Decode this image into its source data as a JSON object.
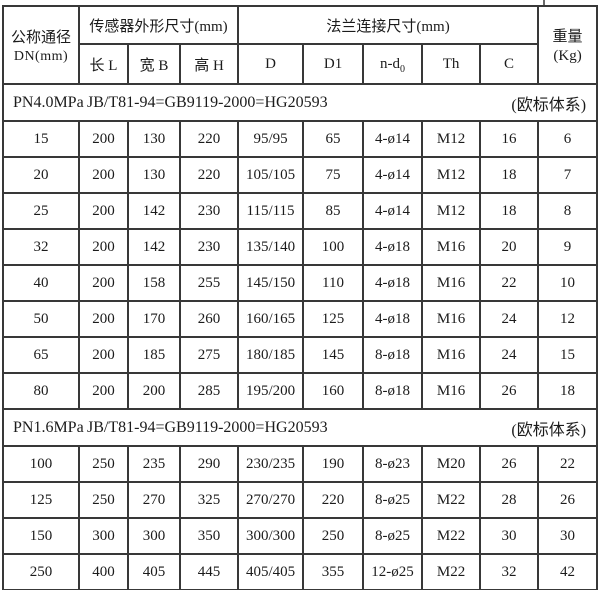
{
  "table": {
    "header": {
      "dn_line1": "公称通径",
      "dn_line2": "DN(mm)",
      "sensor_group": "传感器外形尺寸(mm)",
      "flange_group": "法兰连接尺寸(mm)",
      "weight_line1": "重量",
      "weight_line2": "(Kg)",
      "sub_cols": [
        "长 L",
        "宽 B",
        "高 H",
        "D",
        "D1",
        "n-d",
        "Th",
        "C"
      ],
      "nd_subscript": "0"
    },
    "border_color": "#383838",
    "sections": [
      {
        "pressure": "PN4.0MPa",
        "standard": "JB/T81-94=GB9119-2000=HG20593",
        "note": "(欧标体系)",
        "rows": [
          [
            "15",
            "200",
            "130",
            "220",
            "95/95",
            "65",
            "4-ø14",
            "M12",
            "16",
            "6"
          ],
          [
            "20",
            "200",
            "130",
            "220",
            "105/105",
            "75",
            "4-ø14",
            "M12",
            "18",
            "7"
          ],
          [
            "25",
            "200",
            "142",
            "230",
            "115/115",
            "85",
            "4-ø14",
            "M12",
            "18",
            "8"
          ],
          [
            "32",
            "200",
            "142",
            "230",
            "135/140",
            "100",
            "4-ø18",
            "M16",
            "20",
            "9"
          ],
          [
            "40",
            "200",
            "158",
            "255",
            "145/150",
            "110",
            "4-ø18",
            "M16",
            "22",
            "10"
          ],
          [
            "50",
            "200",
            "170",
            "260",
            "160/165",
            "125",
            "4-ø18",
            "M16",
            "24",
            "12"
          ],
          [
            "65",
            "200",
            "185",
            "275",
            "180/185",
            "145",
            "8-ø18",
            "M16",
            "24",
            "15"
          ],
          [
            "80",
            "200",
            "200",
            "285",
            "195/200",
            "160",
            "8-ø18",
            "M16",
            "26",
            "18"
          ]
        ]
      },
      {
        "pressure": "PN1.6MPa",
        "standard": "JB/T81-94=GB9119-2000=HG20593",
        "note": "(欧标体系)",
        "rows": [
          [
            "100",
            "250",
            "235",
            "290",
            "230/235",
            "190",
            "8-ø23",
            "M20",
            "26",
            "22"
          ],
          [
            "125",
            "250",
            "270",
            "325",
            "270/270",
            "220",
            "8-ø25",
            "M22",
            "28",
            "26"
          ],
          [
            "150",
            "300",
            "300",
            "350",
            "300/300",
            "250",
            "8-ø25",
            "M22",
            "30",
            "30"
          ],
          [
            "250",
            "400",
            "405",
            "445",
            "405/405",
            "355",
            "12-ø25",
            "M22",
            "32",
            "42"
          ]
        ]
      }
    ]
  }
}
